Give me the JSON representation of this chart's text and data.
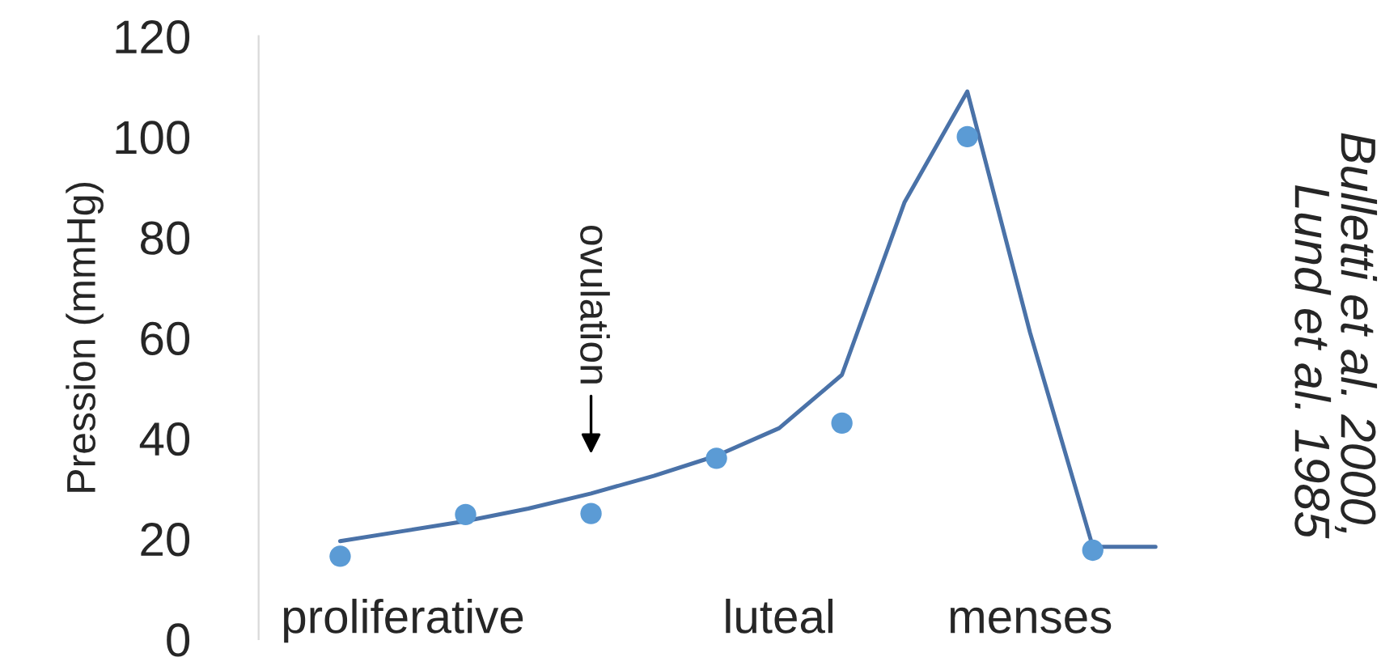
{
  "chart_data": {
    "type": "scatter",
    "ylabel": "Pression (mmHg)",
    "categories": [
      null,
      "proliferative",
      null,
      null,
      null,
      null,
      null,
      "luteal",
      null,
      null,
      null,
      "menses",
      null,
      null
    ],
    "ylim": [
      0,
      120
    ],
    "yticks": [
      0,
      20,
      40,
      60,
      80,
      100,
      120
    ],
    "grid": false,
    "marker": "circle",
    "series": [
      {
        "color": "#5b9bd5",
        "values": [
          16.5,
          null,
          24.8,
          null,
          25,
          null,
          36,
          null,
          43,
          null,
          100,
          null,
          17.7,
          null
        ]
      },
      {
        "type": "line",
        "color": "#4a72a8",
        "line_style": "solid",
        "marker": "none",
        "values": [
          19.5,
          21.5,
          23.5,
          26,
          29,
          32.5,
          36.5,
          42,
          52.6,
          87,
          109,
          61,
          18.4,
          18.4
        ]
      }
    ],
    "annotations": [
      "ovulation",
      "Bulletti et al. 2000,\nLund et al. 1985"
    ]
  }
}
